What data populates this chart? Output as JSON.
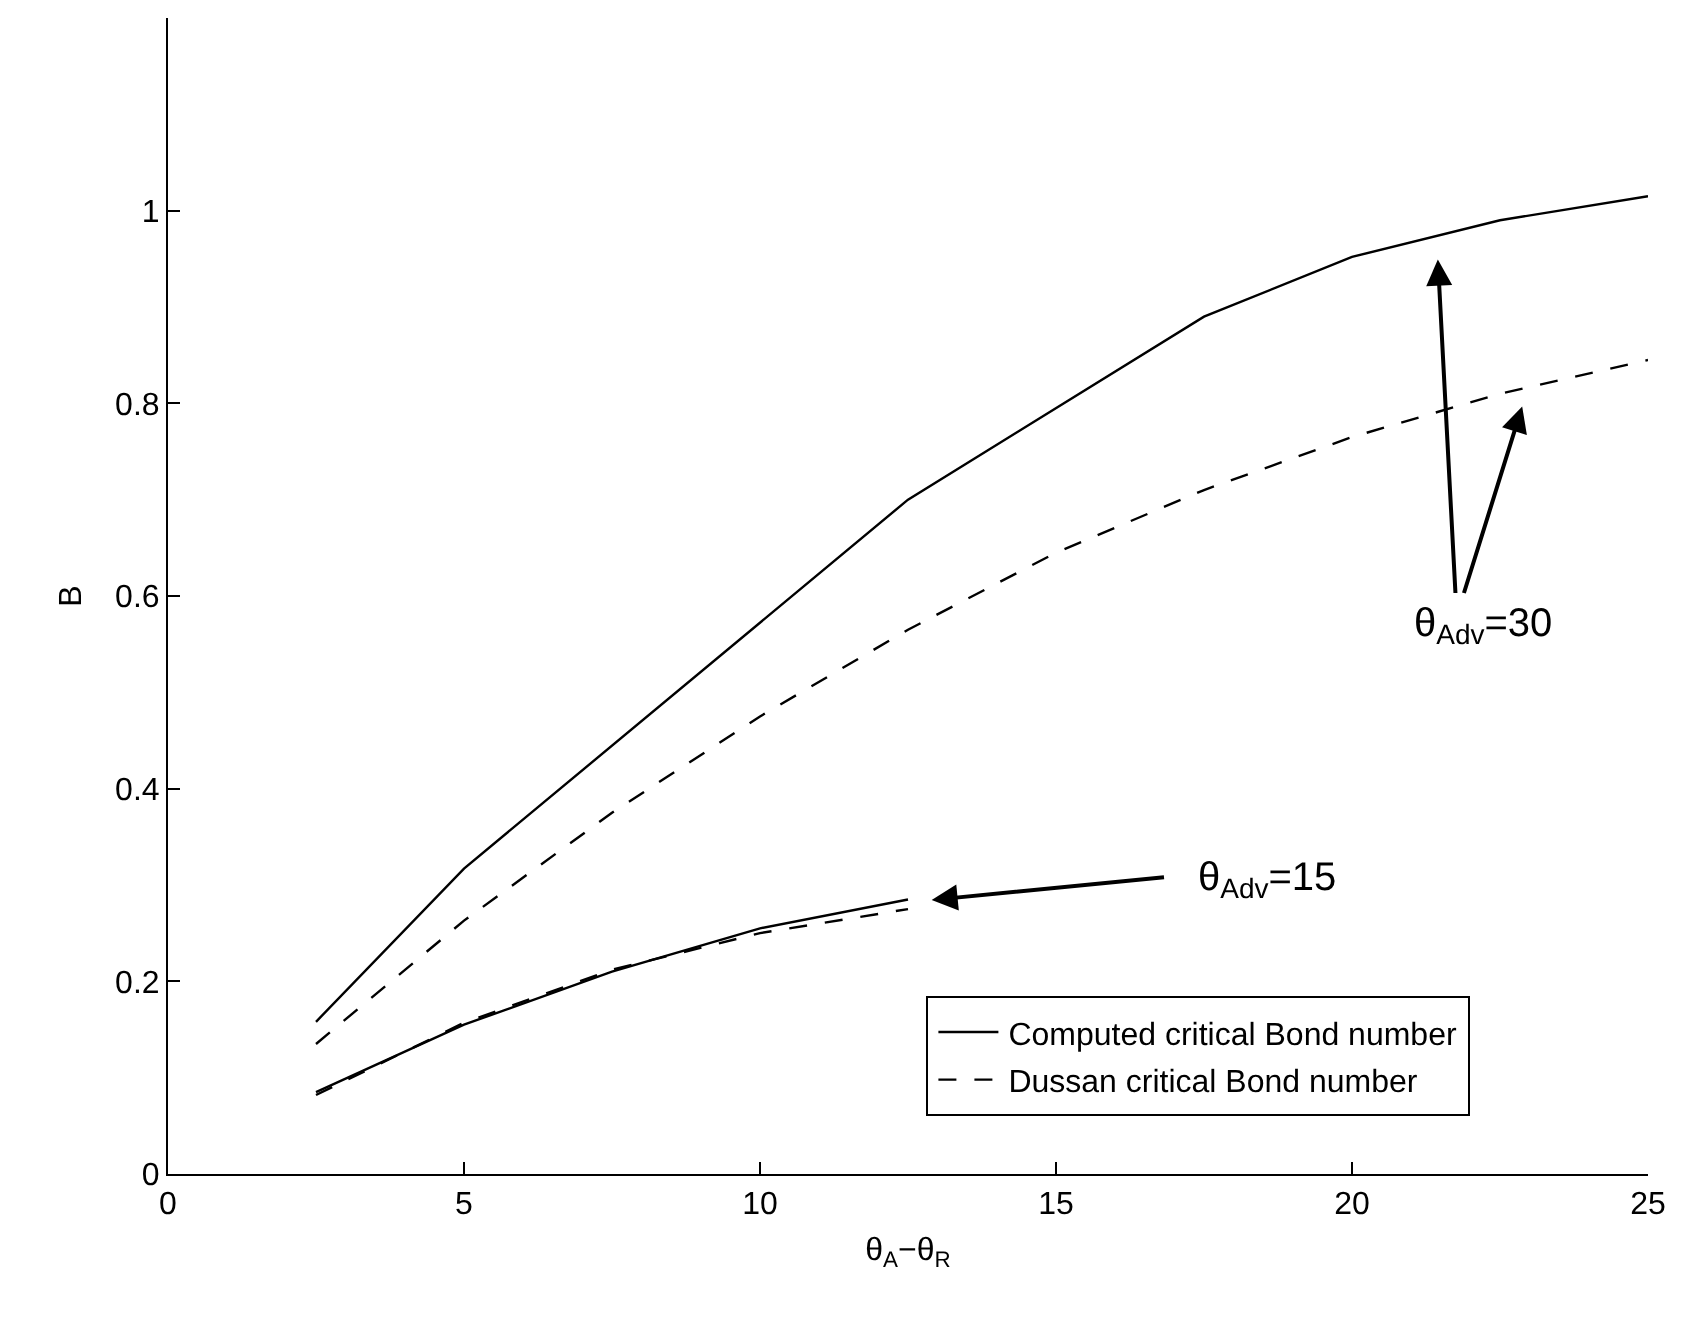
{
  "chart_data": {
    "type": "line",
    "xlabel": "θ$_{A}$−θ$_{R}$",
    "ylabel": "B",
    "xlim": [
      0,
      25
    ],
    "xticks": [
      0,
      5,
      10,
      15,
      20,
      25
    ],
    "ylim": [
      0,
      1.2
    ],
    "yticks": [
      0,
      0.2,
      0.4,
      0.6,
      0.8,
      1
    ],
    "legend": "bottom right",
    "marker": "none",
    "series": [
      {
        "name": "Computed critical Bond number",
        "color": "#000000",
        "line_style": "solid",
        "x": [
          2.5,
          5,
          12.5,
          17.5,
          20,
          22.5,
          25
        ],
        "values": [
          0.158,
          0.317,
          0.7,
          0.89,
          0.952,
          0.99,
          1.015
        ]
      },
      {
        "name": "Dussan critical Bond number",
        "color": "#000000",
        "line_style": "dashed",
        "x": [
          2.5,
          5,
          7.5,
          10,
          12.5,
          15,
          17.5,
          20,
          22.5,
          25
        ],
        "values": [
          0.135,
          0.263,
          0.375,
          0.475,
          0.565,
          0.645,
          0.71,
          0.765,
          0.81,
          0.845
        ]
      },
      {
        "color": "#000000",
        "line_style": "solid",
        "x": [
          2.5,
          5,
          7.5,
          10,
          12.5
        ],
        "values": [
          0.085,
          0.155,
          0.21,
          0.255,
          0.285
        ]
      },
      {
        "color": "#000000",
        "line_style": "dashed",
        "x": [
          2.5,
          5,
          7.5,
          10,
          12.5
        ],
        "values": [
          0.082,
          0.157,
          0.212,
          0.25,
          0.275
        ]
      }
    ],
    "annotations": [
      "θ$_{Adv}$=30",
      "θ$_{Adv}$=15"
    ]
  }
}
